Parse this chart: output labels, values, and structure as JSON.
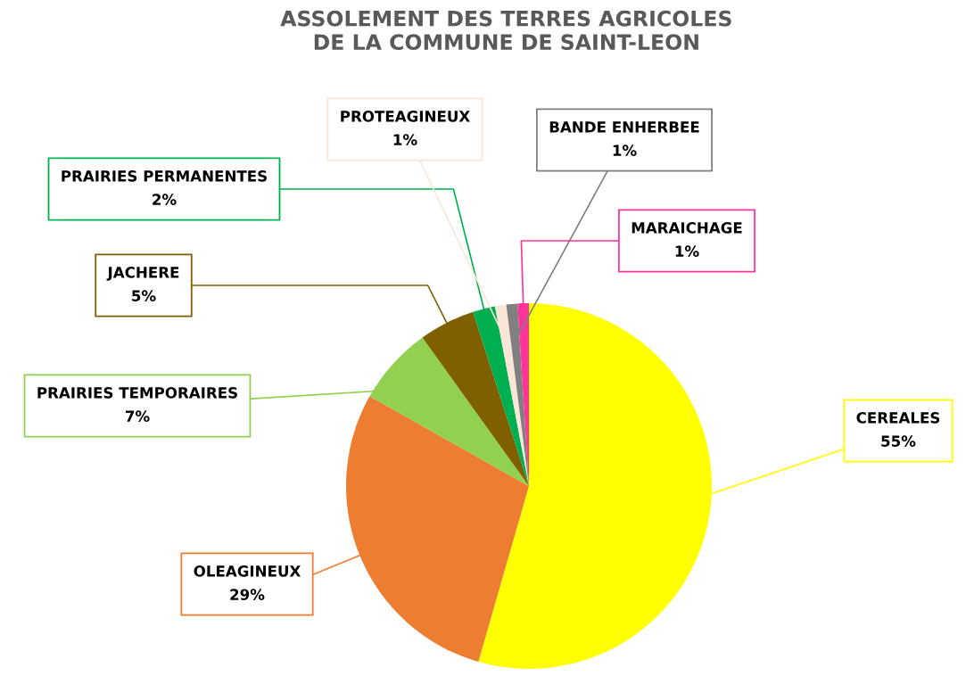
{
  "chart_data": {
    "type": "pie",
    "title": "ASSOLEMENT DES TERRES AGRICOLES\nDE LA COMMUNE DE SAINT-LEON",
    "categories": [
      "CEREALES",
      "OLEAGINEUX",
      "PRAIRIES TEMPORAIRES",
      "JACHERE",
      "PRAIRIES PERMANENTES",
      "PROTEAGINEUX",
      "BANDE ENHERBEE",
      "MARAICHAGE"
    ],
    "values": [
      55,
      29,
      7,
      5,
      2,
      1,
      1,
      1
    ],
    "value_labels": [
      "55%",
      "29%",
      "7%",
      "5%",
      "2%",
      "1%",
      "1%",
      "1%"
    ],
    "colors": [
      "#ffff00",
      "#ed7d31",
      "#92d050",
      "#7f6000",
      "#00b050",
      "#fbe5d6",
      "#808080",
      "#ff3399"
    ],
    "legend": false
  }
}
